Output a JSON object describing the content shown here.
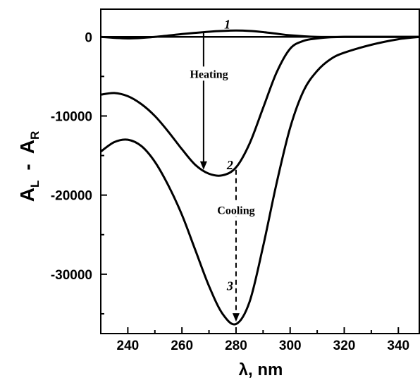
{
  "chart_data": {
    "type": "line",
    "xlabel": "λ, nm",
    "ylabel": "A_L - A_R",
    "ylabel_parts": {
      "main1": "A",
      "sub1": "L",
      "dash": "-",
      "main2": "A",
      "sub2": "R"
    },
    "xlim": [
      230,
      348
    ],
    "ylim": [
      -37500,
      3500
    ],
    "x_ticks": [
      240,
      260,
      280,
      300,
      320,
      340
    ],
    "y_ticks": [
      0,
      -10000,
      -20000,
      -30000
    ],
    "series": [
      {
        "name": "1",
        "x": [
          230,
          240,
          250,
          260,
          270,
          275,
          280,
          285,
          290,
          295,
          300,
          310,
          320,
          330,
          340,
          348
        ],
        "y": [
          0,
          -200,
          0,
          350,
          650,
          750,
          800,
          750,
          600,
          400,
          200,
          0,
          0,
          0,
          0,
          0
        ]
      },
      {
        "name": "2",
        "x": [
          230,
          235,
          240,
          245,
          250,
          255,
          260,
          265,
          270,
          275,
          280,
          285,
          290,
          295,
          300,
          305,
          310,
          315,
          320,
          330,
          340,
          348
        ],
        "y": [
          -7300,
          -7100,
          -7500,
          -8500,
          -10000,
          -12000,
          -14200,
          -16200,
          -17300,
          -17500,
          -16500,
          -13500,
          -9000,
          -4500,
          -1500,
          -500,
          -200,
          -50,
          0,
          0,
          0,
          0
        ]
      },
      {
        "name": "3",
        "x": [
          230,
          235,
          240,
          245,
          250,
          255,
          260,
          265,
          270,
          275,
          280,
          285,
          290,
          295,
          300,
          305,
          310,
          315,
          320,
          330,
          340,
          348
        ],
        "y": [
          -14500,
          -13300,
          -13000,
          -13800,
          -15800,
          -18800,
          -22500,
          -27000,
          -31500,
          -35000,
          -36300,
          -33500,
          -26500,
          -18500,
          -11500,
          -6800,
          -4300,
          -2800,
          -2000,
          -1000,
          -300,
          0
        ]
      }
    ],
    "annotations": [
      {
        "text": "Heating",
        "x": 270,
        "y": -5000
      },
      {
        "text": "Cooling",
        "x": 280,
        "y": -22200
      }
    ],
    "arrows": [
      {
        "style": "solid",
        "x": 268,
        "y_from": 500,
        "y_to": -16800
      },
      {
        "style": "dashed",
        "x": 280,
        "y_from": -16800,
        "y_to": -36000
      }
    ],
    "grid": false,
    "legend": "none"
  }
}
